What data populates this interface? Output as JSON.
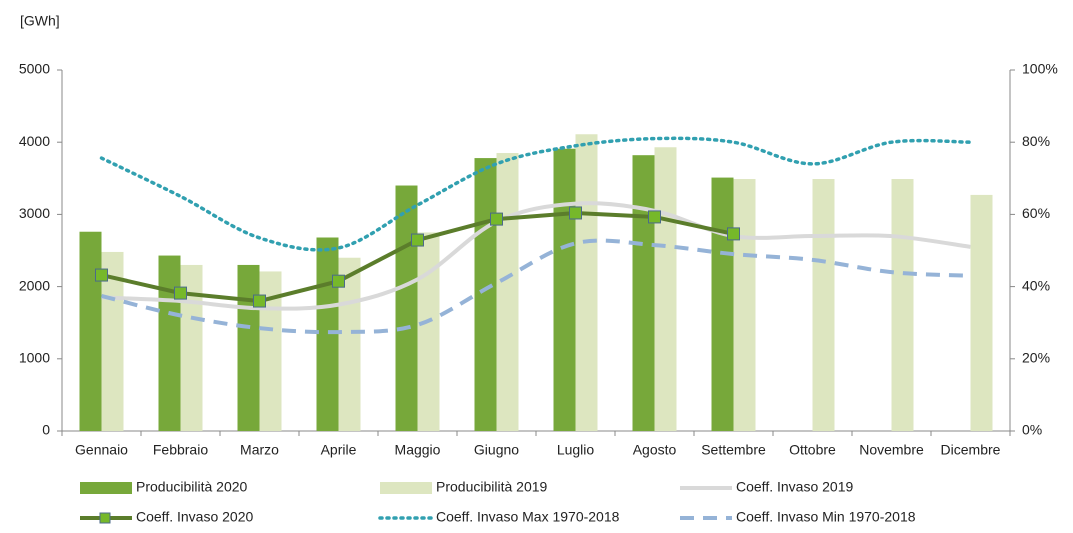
{
  "chart_data": {
    "type": "bar",
    "y_label": "[GWh]",
    "categories": [
      "Gennaio",
      "Febbraio",
      "Marzo",
      "Aprile",
      "Maggio",
      "Giugno",
      "Luglio",
      "Agosto",
      "Settembre",
      "Ottobre",
      "Novembre",
      "Dicembre"
    ],
    "ylim": [
      0,
      5000
    ],
    "yticks": [
      0,
      1000,
      2000,
      3000,
      4000,
      5000
    ],
    "y2lim": [
      0,
      100
    ],
    "y2ticks": [
      {
        "value": 0,
        "label": "0%"
      },
      {
        "value": 20,
        "label": "20%"
      },
      {
        "value": 40,
        "label": "40%"
      },
      {
        "value": 60,
        "label": "60%"
      },
      {
        "value": 80,
        "label": "80%"
      },
      {
        "value": 100,
        "label": "100%"
      }
    ],
    "series": [
      {
        "name": "Producibilità 2020",
        "type": "bar",
        "color": "#77a83a",
        "values": [
          2760,
          2430,
          2300,
          2680,
          3400,
          3780,
          3910,
          3820,
          3510,
          null,
          null,
          null
        ]
      },
      {
        "name": "Producibilità 2019",
        "type": "bar",
        "color": "#dde6c0",
        "values": [
          2480,
          2300,
          2210,
          2400,
          2750,
          3850,
          4110,
          3930,
          3490,
          3490,
          3490,
          3270
        ]
      },
      {
        "name": "Coeff. Invaso 2019",
        "type": "line",
        "axis": "y2",
        "style": "solid",
        "smooth": true,
        "color": "#d9d9d9",
        "values": [
          37,
          36,
          34,
          35,
          42,
          58,
          63,
          61,
          54,
          54,
          54,
          51
        ]
      },
      {
        "name": "Coeff. Invaso 2020",
        "type": "line",
        "axis": "y2",
        "style": "solid",
        "marker": true,
        "color": "#5b7d2b",
        "marker_color": "#76b82a",
        "values": [
          43.2,
          38.2,
          36,
          41.5,
          52.9,
          58.7,
          60.4,
          59.3,
          54.6,
          null,
          null,
          null
        ]
      },
      {
        "name": "Coeff. Invaso Max 1970-2018",
        "type": "line",
        "axis": "y2",
        "style": "dotted",
        "smooth": true,
        "color": "#31a0b0",
        "values": [
          75.6,
          65,
          53.5,
          50.7,
          62.6,
          74,
          79,
          81,
          80,
          74,
          80,
          80
        ]
      },
      {
        "name": "Coeff. Invaso Min 1970-2018",
        "type": "line",
        "axis": "y2",
        "style": "dashed",
        "smooth": true,
        "color": "#95b3d7",
        "values": [
          37.4,
          32,
          28.5,
          27.4,
          29.4,
          41,
          52,
          51.5,
          49,
          47.4,
          44,
          43
        ]
      }
    ]
  }
}
